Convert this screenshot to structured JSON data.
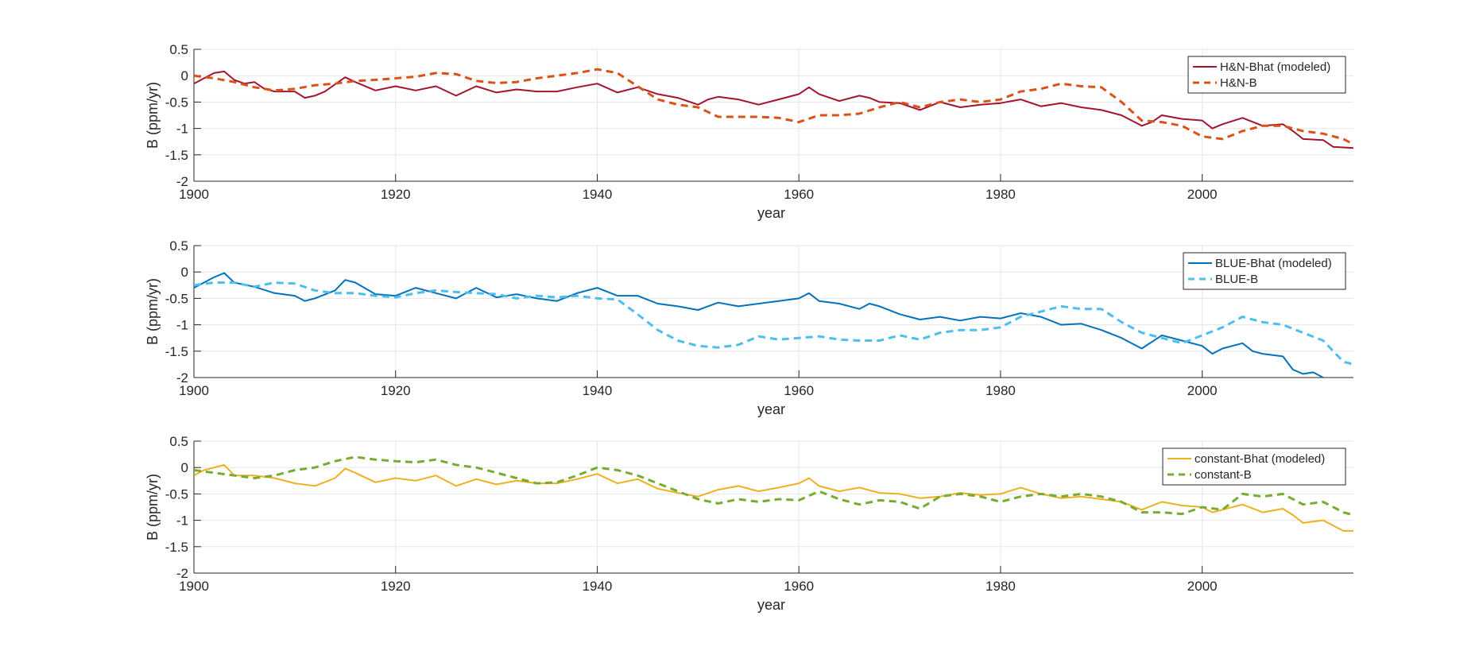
{
  "chart_data": [
    {
      "type": "line",
      "xlabel": "year",
      "ylabel": "B (ppm/yr)",
      "xlim": [
        1900,
        2015
      ],
      "ylim": [
        -2,
        0.5
      ],
      "xticks": [
        "1900",
        "1920",
        "1940",
        "1960",
        "1980",
        "2000"
      ],
      "yticks": [
        "0.5",
        "0",
        "-0.5",
        "-1",
        "-1.5",
        "-2"
      ],
      "grid": true,
      "legend_position": "top-right",
      "series": [
        {
          "name": "H&N-Bhat (modeled)",
          "color": "#A2142F",
          "style": "solid",
          "x": [
            1900,
            1901,
            1902,
            1903,
            1904,
            1905,
            1906,
            1907,
            1908,
            1910,
            1911,
            1912,
            1913,
            1915,
            1916,
            1918,
            1920,
            1922,
            1924,
            1926,
            1928,
            1930,
            1932,
            1934,
            1936,
            1938,
            1940,
            1942,
            1944,
            1946,
            1948,
            1950,
            1951,
            1952,
            1954,
            1956,
            1958,
            1960,
            1961,
            1962,
            1964,
            1966,
            1967,
            1968,
            1970,
            1972,
            1974,
            1976,
            1978,
            1980,
            1982,
            1984,
            1986,
            1988,
            1990,
            1992,
            1994,
            1995,
            1996,
            1998,
            2000,
            2001,
            2002,
            2004,
            2006,
            2008,
            2009,
            2010,
            2012,
            2013,
            2015
          ],
          "values": [
            -0.15,
            -0.05,
            0.05,
            0.08,
            -0.08,
            -0.15,
            -0.12,
            -0.25,
            -0.3,
            -0.3,
            -0.42,
            -0.38,
            -0.3,
            -0.03,
            -0.12,
            -0.28,
            -0.2,
            -0.28,
            -0.2,
            -0.38,
            -0.2,
            -0.32,
            -0.26,
            -0.3,
            -0.3,
            -0.22,
            -0.15,
            -0.32,
            -0.22,
            -0.35,
            -0.42,
            -0.55,
            -0.45,
            -0.4,
            -0.45,
            -0.55,
            -0.45,
            -0.35,
            -0.22,
            -0.35,
            -0.48,
            -0.38,
            -0.42,
            -0.5,
            -0.52,
            -0.65,
            -0.5,
            -0.6,
            -0.55,
            -0.52,
            -0.45,
            -0.58,
            -0.52,
            -0.6,
            -0.65,
            -0.75,
            -0.95,
            -0.88,
            -0.75,
            -0.82,
            -0.85,
            -1.0,
            -0.92,
            -0.8,
            -0.95,
            -0.92,
            -1.05,
            -1.2,
            -1.22,
            -1.35,
            -1.37
          ]
        },
        {
          "name": "H&N-B",
          "color": "#D95319",
          "style": "dashed",
          "x": [
            1900,
            1902,
            1904,
            1906,
            1908,
            1910,
            1912,
            1914,
            1916,
            1918,
            1920,
            1922,
            1924,
            1926,
            1928,
            1930,
            1932,
            1934,
            1936,
            1938,
            1940,
            1942,
            1944,
            1946,
            1948,
            1950,
            1952,
            1954,
            1956,
            1958,
            1960,
            1962,
            1964,
            1966,
            1968,
            1970,
            1972,
            1974,
            1976,
            1978,
            1980,
            1982,
            1984,
            1986,
            1988,
            1990,
            1992,
            1994,
            1996,
            1998,
            2000,
            2002,
            2004,
            2006,
            2008,
            2010,
            2012,
            2014,
            2015
          ],
          "values": [
            0.0,
            -0.05,
            -0.12,
            -0.22,
            -0.28,
            -0.25,
            -0.18,
            -0.15,
            -0.1,
            -0.08,
            -0.05,
            -0.02,
            0.05,
            0.03,
            -0.1,
            -0.14,
            -0.12,
            -0.05,
            0.0,
            0.05,
            0.12,
            0.05,
            -0.2,
            -0.45,
            -0.55,
            -0.6,
            -0.78,
            -0.78,
            -0.78,
            -0.8,
            -0.88,
            -0.75,
            -0.75,
            -0.72,
            -0.6,
            -0.5,
            -0.6,
            -0.5,
            -0.45,
            -0.5,
            -0.45,
            -0.3,
            -0.25,
            -0.15,
            -0.2,
            -0.22,
            -0.5,
            -0.85,
            -0.88,
            -0.95,
            -1.15,
            -1.2,
            -1.05,
            -0.95,
            -0.95,
            -1.05,
            -1.1,
            -1.2,
            -1.3
          ]
        }
      ]
    },
    {
      "type": "line",
      "xlabel": "year",
      "ylabel": "B (ppm/yr)",
      "xlim": [
        1900,
        2015
      ],
      "ylim": [
        -2,
        0.5
      ],
      "xticks": [
        "1900",
        "1920",
        "1940",
        "1960",
        "1980",
        "2000"
      ],
      "yticks": [
        "0.5",
        "0",
        "-0.5",
        "-1",
        "-1.5",
        "-2"
      ],
      "grid": true,
      "legend_position": "top-right",
      "series": [
        {
          "name": "BLUE-Bhat (modeled)",
          "color": "#0072BD",
          "style": "solid",
          "x": [
            1900,
            1901,
            1902,
            1903,
            1904,
            1906,
            1908,
            1910,
            1911,
            1912,
            1914,
            1915,
            1916,
            1918,
            1920,
            1922,
            1924,
            1926,
            1928,
            1930,
            1932,
            1934,
            1936,
            1938,
            1940,
            1942,
            1944,
            1946,
            1948,
            1950,
            1952,
            1954,
            1956,
            1958,
            1960,
            1961,
            1962,
            1964,
            1966,
            1967,
            1968,
            1970,
            1972,
            1974,
            1976,
            1978,
            1980,
            1982,
            1984,
            1986,
            1988,
            1990,
            1992,
            1994,
            1996,
            1998,
            2000,
            2001,
            2002,
            2004,
            2005,
            2006,
            2008,
            2009,
            2010,
            2011,
            2012
          ],
          "values": [
            -0.3,
            -0.2,
            -0.1,
            -0.02,
            -0.2,
            -0.28,
            -0.4,
            -0.45,
            -0.55,
            -0.5,
            -0.35,
            -0.15,
            -0.2,
            -0.42,
            -0.45,
            -0.3,
            -0.4,
            -0.5,
            -0.3,
            -0.48,
            -0.42,
            -0.5,
            -0.55,
            -0.4,
            -0.3,
            -0.45,
            -0.45,
            -0.6,
            -0.65,
            -0.72,
            -0.58,
            -0.65,
            -0.6,
            -0.55,
            -0.5,
            -0.4,
            -0.55,
            -0.6,
            -0.7,
            -0.6,
            -0.65,
            -0.8,
            -0.9,
            -0.85,
            -0.92,
            -0.85,
            -0.88,
            -0.78,
            -0.85,
            -1.0,
            -0.98,
            -1.1,
            -1.25,
            -1.45,
            -1.2,
            -1.3,
            -1.4,
            -1.55,
            -1.45,
            -1.35,
            -1.5,
            -1.55,
            -1.6,
            -1.85,
            -1.93,
            -1.9,
            -2.0
          ]
        },
        {
          "name": "BLUE-B",
          "color": "#4DBEEE",
          "style": "dashed",
          "x": [
            1900,
            1902,
            1904,
            1906,
            1908,
            1910,
            1912,
            1914,
            1916,
            1918,
            1920,
            1922,
            1924,
            1926,
            1928,
            1930,
            1932,
            1934,
            1936,
            1938,
            1940,
            1942,
            1944,
            1946,
            1948,
            1950,
            1952,
            1954,
            1956,
            1958,
            1960,
            1962,
            1964,
            1966,
            1968,
            1970,
            1972,
            1974,
            1976,
            1978,
            1980,
            1982,
            1984,
            1986,
            1988,
            1990,
            1992,
            1994,
            1996,
            1998,
            2000,
            2002,
            2004,
            2006,
            2008,
            2010,
            2012,
            2014,
            2015
          ],
          "values": [
            -0.25,
            -0.2,
            -0.2,
            -0.28,
            -0.2,
            -0.22,
            -0.35,
            -0.4,
            -0.4,
            -0.45,
            -0.48,
            -0.4,
            -0.35,
            -0.38,
            -0.4,
            -0.42,
            -0.5,
            -0.45,
            -0.48,
            -0.45,
            -0.5,
            -0.52,
            -0.8,
            -1.1,
            -1.3,
            -1.4,
            -1.43,
            -1.38,
            -1.22,
            -1.28,
            -1.25,
            -1.22,
            -1.28,
            -1.3,
            -1.3,
            -1.2,
            -1.28,
            -1.15,
            -1.1,
            -1.1,
            -1.05,
            -0.85,
            -0.75,
            -0.65,
            -0.7,
            -0.7,
            -0.95,
            -1.15,
            -1.25,
            -1.35,
            -1.2,
            -1.05,
            -0.85,
            -0.95,
            -1.0,
            -1.15,
            -1.3,
            -1.7,
            -1.75
          ]
        }
      ]
    },
    {
      "type": "line",
      "xlabel": "year",
      "ylabel": "B (ppm/yr)",
      "xlim": [
        1900,
        2015
      ],
      "ylim": [
        -2,
        0.5
      ],
      "xticks": [
        "1900",
        "1920",
        "1940",
        "1960",
        "1980",
        "2000"
      ],
      "yticks": [
        "0.5",
        "0",
        "-0.5",
        "-1",
        "-1.5",
        "-2"
      ],
      "grid": true,
      "legend_position": "top-right",
      "series": [
        {
          "name": "constant-Bhat (modeled)",
          "color": "#EDB120",
          "style": "solid",
          "x": [
            1900,
            1901,
            1902,
            1903,
            1904,
            1906,
            1908,
            1910,
            1912,
            1914,
            1915,
            1916,
            1918,
            1920,
            1922,
            1924,
            1926,
            1928,
            1930,
            1932,
            1934,
            1936,
            1938,
            1940,
            1942,
            1944,
            1946,
            1948,
            1950,
            1952,
            1954,
            1956,
            1958,
            1960,
            1961,
            1962,
            1964,
            1966,
            1968,
            1970,
            1972,
            1974,
            1976,
            1978,
            1980,
            1982,
            1984,
            1986,
            1988,
            1990,
            1992,
            1994,
            1996,
            1998,
            2000,
            2001,
            2002,
            2004,
            2006,
            2008,
            2009,
            2010,
            2012,
            2014,
            2015
          ],
          "values": [
            -0.15,
            -0.05,
            0.0,
            0.05,
            -0.15,
            -0.15,
            -0.2,
            -0.3,
            -0.35,
            -0.2,
            -0.02,
            -0.1,
            -0.28,
            -0.2,
            -0.25,
            -0.15,
            -0.35,
            -0.22,
            -0.32,
            -0.25,
            -0.3,
            -0.3,
            -0.22,
            -0.12,
            -0.3,
            -0.22,
            -0.4,
            -0.48,
            -0.55,
            -0.42,
            -0.35,
            -0.45,
            -0.38,
            -0.3,
            -0.2,
            -0.35,
            -0.45,
            -0.38,
            -0.48,
            -0.5,
            -0.58,
            -0.55,
            -0.48,
            -0.52,
            -0.5,
            -0.38,
            -0.5,
            -0.58,
            -0.55,
            -0.6,
            -0.65,
            -0.8,
            -0.65,
            -0.72,
            -0.75,
            -0.85,
            -0.8,
            -0.7,
            -0.85,
            -0.78,
            -0.9,
            -1.05,
            -1.0,
            -1.2,
            -1.2
          ]
        },
        {
          "name": "constant-B",
          "color": "#77AC30",
          "style": "dashed",
          "x": [
            1900,
            1902,
            1904,
            1906,
            1908,
            1910,
            1912,
            1914,
            1916,
            1918,
            1920,
            1922,
            1924,
            1926,
            1928,
            1930,
            1932,
            1934,
            1936,
            1938,
            1940,
            1942,
            1944,
            1946,
            1948,
            1950,
            1952,
            1954,
            1956,
            1958,
            1960,
            1962,
            1964,
            1966,
            1968,
            1970,
            1972,
            1974,
            1976,
            1978,
            1980,
            1982,
            1984,
            1986,
            1988,
            1990,
            1992,
            1994,
            1996,
            1998,
            2000,
            2002,
            2004,
            2006,
            2008,
            2010,
            2012,
            2014,
            2015
          ],
          "values": [
            -0.05,
            -0.1,
            -0.15,
            -0.2,
            -0.15,
            -0.05,
            0.0,
            0.12,
            0.2,
            0.15,
            0.12,
            0.1,
            0.15,
            0.05,
            0.0,
            -0.1,
            -0.2,
            -0.3,
            -0.28,
            -0.15,
            0.0,
            -0.05,
            -0.15,
            -0.3,
            -0.45,
            -0.6,
            -0.68,
            -0.6,
            -0.65,
            -0.6,
            -0.62,
            -0.45,
            -0.6,
            -0.7,
            -0.62,
            -0.65,
            -0.78,
            -0.55,
            -0.5,
            -0.55,
            -0.65,
            -0.55,
            -0.5,
            -0.55,
            -0.5,
            -0.55,
            -0.65,
            -0.85,
            -0.85,
            -0.88,
            -0.75,
            -0.8,
            -0.5,
            -0.55,
            -0.5,
            -0.7,
            -0.65,
            -0.85,
            -0.9
          ]
        }
      ]
    }
  ]
}
